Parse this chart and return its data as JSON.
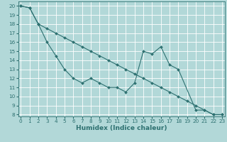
{
  "xlabel": "Humidex (Indice chaleur)",
  "background_color": "#b2d8d8",
  "grid_color": "#ffffff",
  "line_color": "#2d7070",
  "xlim": [
    -0.3,
    23.3
  ],
  "ylim": [
    7.8,
    20.5
  ],
  "yticks": [
    8,
    9,
    10,
    11,
    12,
    13,
    14,
    15,
    16,
    17,
    18,
    19,
    20
  ],
  "xticks": [
    0,
    1,
    2,
    3,
    4,
    5,
    6,
    7,
    8,
    9,
    10,
    11,
    12,
    13,
    14,
    15,
    16,
    17,
    18,
    19,
    20,
    21,
    22,
    23
  ],
  "line1_x": [
    0,
    1,
    2,
    3,
    4,
    5,
    6,
    7,
    8,
    9,
    10,
    11,
    12,
    13,
    14,
    15,
    16,
    17,
    18,
    20,
    21,
    22,
    23
  ],
  "line1_y": [
    20,
    19.8,
    18,
    16,
    14.5,
    13,
    12,
    11.5,
    12,
    11.5,
    11,
    11,
    10.5,
    11.5,
    15,
    14.7,
    15.5,
    13.5,
    13,
    8.5,
    8.5,
    8,
    8
  ],
  "line2_x": [
    0,
    1,
    2,
    3,
    4,
    5,
    6,
    7,
    8,
    9,
    10,
    11,
    12,
    13,
    14,
    15,
    16,
    17,
    18,
    19,
    20,
    21,
    22,
    23
  ],
  "line2_y": [
    20,
    19.8,
    18,
    17.5,
    17,
    16.5,
    16,
    15.5,
    15,
    14.5,
    14,
    13.5,
    13,
    12.5,
    12,
    11.5,
    11,
    10.5,
    10,
    9.5,
    9,
    8.5,
    8,
    8
  ],
  "marker": "D",
  "markersize": 2.0,
  "linewidth": 0.8,
  "xlabel_fontsize": 6.5,
  "tick_fontsize": 5.2
}
